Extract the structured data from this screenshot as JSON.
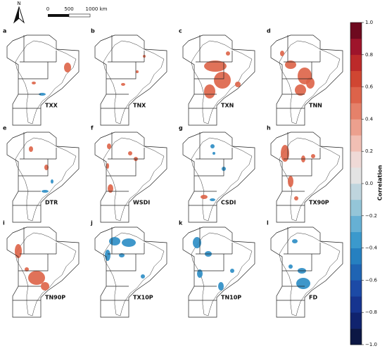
{
  "north_arrow": {
    "label": "N"
  },
  "scale_bar": {
    "labels": [
      "0",
      "500",
      "1000 km"
    ]
  },
  "panels": [
    {
      "letter": "a",
      "name": "TXX"
    },
    {
      "letter": "b",
      "name": "TNX"
    },
    {
      "letter": "c",
      "name": "TXN"
    },
    {
      "letter": "d",
      "name": "TNN"
    },
    {
      "letter": "e",
      "name": "DTR"
    },
    {
      "letter": "f",
      "name": "WSDI"
    },
    {
      "letter": "g",
      "name": "CSDI"
    },
    {
      "letter": "h",
      "name": "TX90P"
    },
    {
      "letter": "i",
      "name": "TN90P"
    },
    {
      "letter": "j",
      "name": "TX10P"
    },
    {
      "letter": "k",
      "name": "TN10P"
    },
    {
      "letter": "l",
      "name": "FD"
    }
  ],
  "colorbar": {
    "label": "Correlation",
    "lim": [
      -1,
      1
    ],
    "ticks": [
      {
        "value": -1,
        "label": "−1.0"
      },
      {
        "value": -0.8,
        "label": "−0.8"
      },
      {
        "value": -0.6,
        "label": "−0.6"
      },
      {
        "value": -0.4,
        "label": "−0.4"
      },
      {
        "value": -0.2,
        "label": "−0.2"
      },
      {
        "value": 0,
        "label": "0.0"
      },
      {
        "value": 0.2,
        "label": "0.2"
      },
      {
        "value": 0.4,
        "label": "0.4"
      },
      {
        "value": 0.6,
        "label": "0.6"
      },
      {
        "value": 0.8,
        "label": "0.8"
      },
      {
        "value": 1,
        "label": "1.0"
      }
    ],
    "colors": [
      "#0c1744",
      "#10236e",
      "#16348f",
      "#1c4aa6",
      "#1f64b3",
      "#2680c0",
      "#3b99cc",
      "#66b0d4",
      "#94c5d8",
      "#bfd5de",
      "#e3e3e3",
      "#efd9d6",
      "#f1bfb4",
      "#eca08e",
      "#e5816a",
      "#dd634a",
      "#d04632",
      "#bc2a2a",
      "#9e142b",
      "#6e0a1f"
    ]
  }
}
